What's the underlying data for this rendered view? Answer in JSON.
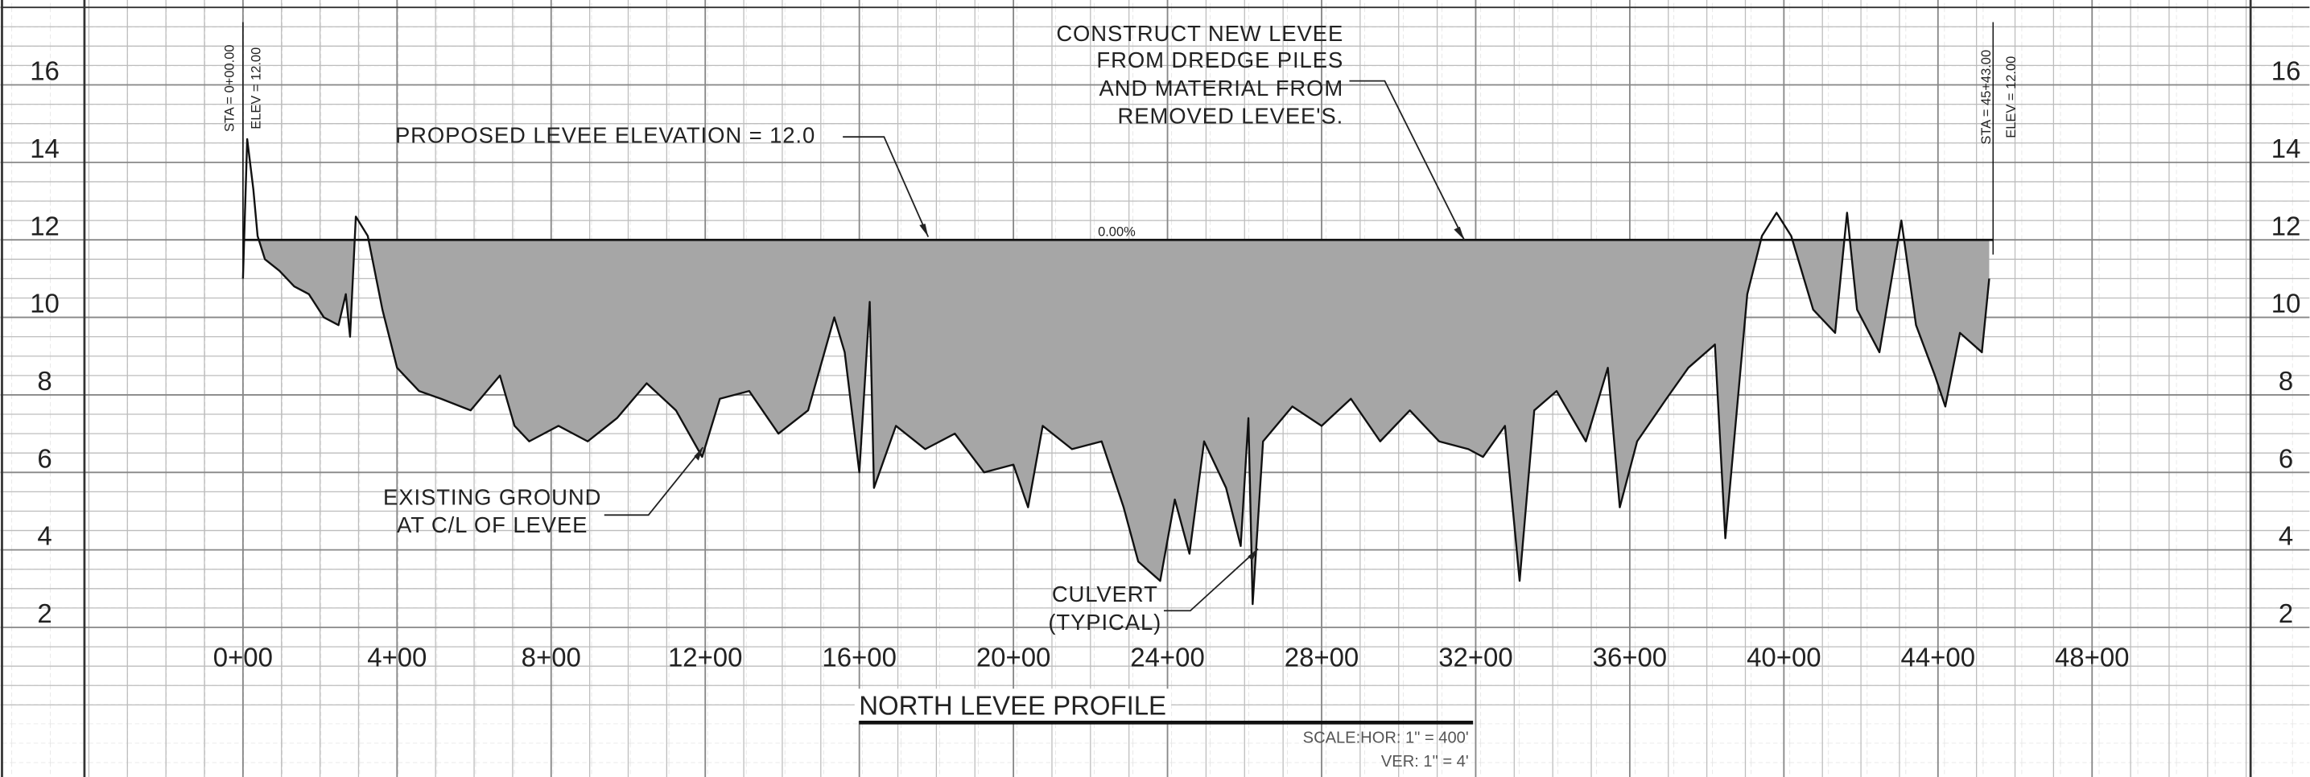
{
  "chart_data": {
    "type": "area",
    "title": "NORTH LEVEE PROFILE",
    "scale_text": [
      "SCALE:HOR: 1\" = 400'",
      "VER: 1\" = 4'"
    ],
    "annotations": {
      "proposed": "PROPOSED LEVEE ELEVATION = 12.0",
      "construct": [
        "CONSTRUCT NEW LEVEE",
        "FROM DREDGE PILES",
        "AND MATERIAL FROM",
        "REMOVED LEVEE'S."
      ],
      "existing": [
        "EXISTING GROUND",
        "AT C/L OF LEVEE"
      ],
      "culvert": [
        "CULVERT",
        "(TYPICAL)"
      ],
      "grade": "0.00%",
      "start_sta": "STA = 0+00.00",
      "start_elev": "ELEV = 12.00",
      "end_sta": "STA = 45+43.00",
      "end_elev": "ELEV = 12.00"
    },
    "levee": {
      "elevation": 12,
      "from": 0,
      "to": 4543
    },
    "color": "#a6a6a6",
    "line_color": "#111111",
    "x": [
      0,
      11,
      27,
      38,
      57,
      95,
      133,
      171,
      210,
      248,
      267,
      278,
      293,
      324,
      362,
      400,
      457,
      514,
      591,
      667,
      705,
      743,
      819,
      895,
      971,
      1048,
      1124,
      1192,
      1238,
      1314,
      1390,
      1467,
      1535,
      1562,
      1600,
      1627,
      1638,
      1695,
      1771,
      1848,
      1924,
      2000,
      2038,
      2076,
      2152,
      2229,
      2286,
      2324,
      2381,
      2419,
      2457,
      2495,
      2552,
      2590,
      2610,
      2621,
      2648,
      2724,
      2800,
      2876,
      2952,
      3029,
      3105,
      3181,
      3219,
      3276,
      3314,
      3352,
      3410,
      3486,
      3543,
      3574,
      3619,
      3695,
      3752,
      3821,
      3848,
      3905,
      3943,
      3981,
      4019,
      4076,
      4133,
      4164,
      4190,
      4248,
      4305,
      4343,
      4392,
      4419,
      4457,
      4514,
      4533
    ],
    "values": [
      11.0,
      14.6,
      13.3,
      12.1,
      11.5,
      11.2,
      10.8,
      10.6,
      10.0,
      9.8,
      10.6,
      9.5,
      12.6,
      12.1,
      10.2,
      8.7,
      8.1,
      7.9,
      7.6,
      8.5,
      7.2,
      6.8,
      7.2,
      6.8,
      7.4,
      8.3,
      7.6,
      6.4,
      7.9,
      8.1,
      7.0,
      7.6,
      10.0,
      9.1,
      6.0,
      10.4,
      5.6,
      7.2,
      6.6,
      7.0,
      6.0,
      6.2,
      5.1,
      7.2,
      6.6,
      6.8,
      5.1,
      3.7,
      3.2,
      5.3,
      3.9,
      6.8,
      5.6,
      4.1,
      7.4,
      2.6,
      6.8,
      7.7,
      7.2,
      7.9,
      6.8,
      7.6,
      6.8,
      6.6,
      6.4,
      7.2,
      3.2,
      7.6,
      8.1,
      6.8,
      8.7,
      5.1,
      6.8,
      7.9,
      8.7,
      9.3,
      4.3,
      10.6,
      12.1,
      12.7,
      12.1,
      10.2,
      9.6,
      12.7,
      10.2,
      9.1,
      12.5,
      9.8,
      8.5,
      7.7,
      9.6,
      9.1,
      11.0
    ],
    "xlim": [
      -400,
      5200
    ],
    "ylim": [
      0,
      18
    ],
    "xticks": [
      {
        "value": 0,
        "label": "0+00"
      },
      {
        "value": 400,
        "label": "4+00"
      },
      {
        "value": 800,
        "label": "8+00"
      },
      {
        "value": 1200,
        "label": "12+00"
      },
      {
        "value": 1600,
        "label": "16+00"
      },
      {
        "value": 2000,
        "label": "20+00"
      },
      {
        "value": 2400,
        "label": "24+00"
      },
      {
        "value": 2800,
        "label": "28+00"
      },
      {
        "value": 3200,
        "label": "32+00"
      },
      {
        "value": 3600,
        "label": "36+00"
      },
      {
        "value": 4000,
        "label": "40+00"
      },
      {
        "value": 4400,
        "label": "44+00"
      },
      {
        "value": 4800,
        "label": "48+00"
      }
    ],
    "yticks": [
      2,
      4,
      6,
      8,
      10,
      12,
      14,
      16
    ],
    "grid": true
  }
}
